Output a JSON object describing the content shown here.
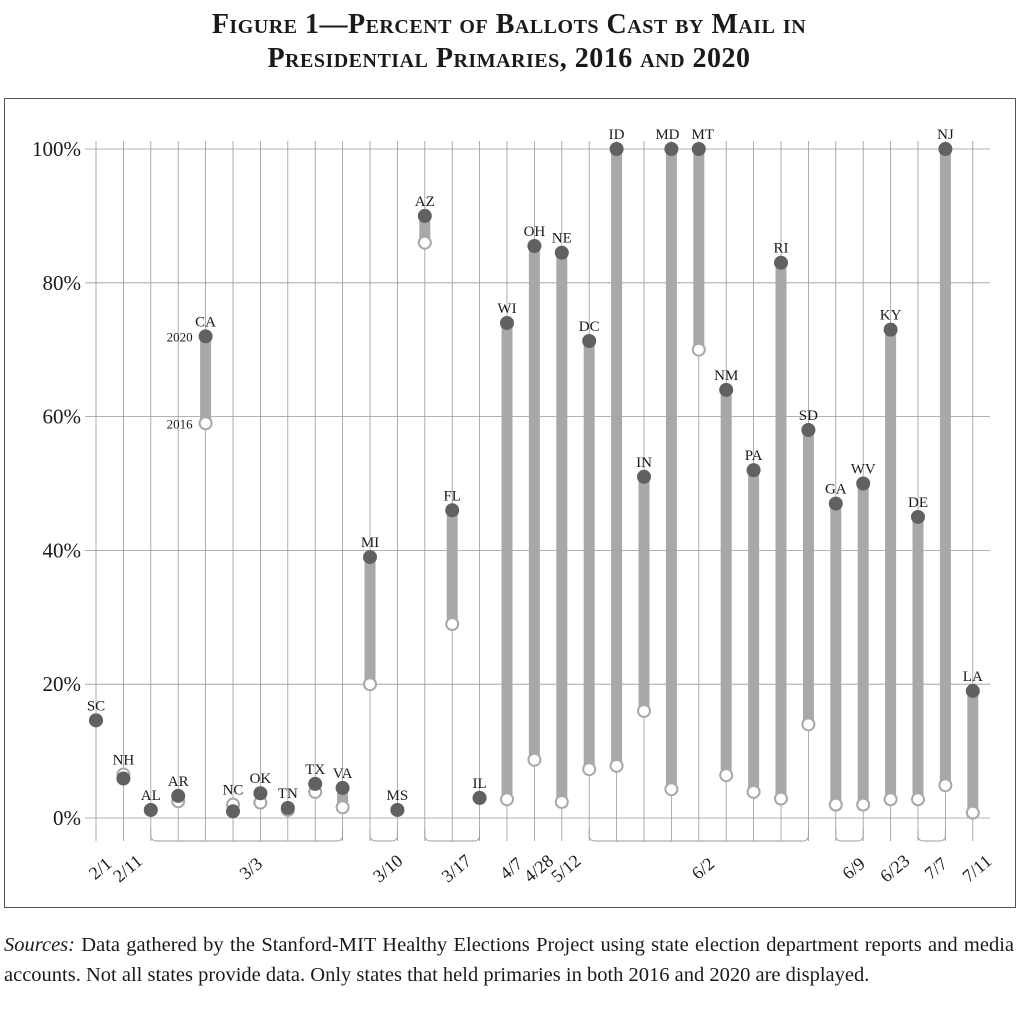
{
  "title": {
    "line1": "Figure 1—Percent of Ballots Cast by Mail in",
    "line2": "Presidential Primaries, 2016 and 2020"
  },
  "sources": {
    "label": "Sources:",
    "text": " Data gathered by the Stanford-MIT Healthy Elections Project using state election department reports and media accounts. Not all states provide data. Only states that held primaries in both 2016 and 2020 are displayed."
  },
  "chart_data": {
    "type": "dumbbell",
    "ylim": [
      0,
      100
    ],
    "yticks": [
      0,
      20,
      40,
      60,
      80,
      100
    ],
    "ytick_labels": [
      "0%",
      "20%",
      "40%",
      "60%",
      "80%",
      "100%"
    ],
    "grid": true,
    "legend_labels": {
      "y2020": "2020",
      "y2016": "2016"
    },
    "colors": {
      "filled": "#616161",
      "bar": "#a8a8a8",
      "grid": "#9a9a9a",
      "open_fill": "#ffffff"
    },
    "states": [
      {
        "state": "SC",
        "v2016": 14.6,
        "v2020": 14.6
      },
      {
        "state": "NH",
        "v2016": 6.5,
        "v2020": 5.9
      },
      {
        "state": "AL",
        "v2016": 1.2,
        "v2020": 1.2
      },
      {
        "state": "AR",
        "v2016": 2.5,
        "v2020": 3.3
      },
      {
        "state": "CA",
        "v2016": 59,
        "v2020": 72
      },
      {
        "state": "NC",
        "v2016": 2.0,
        "v2020": 1.0
      },
      {
        "state": "OK",
        "v2016": 2.3,
        "v2020": 3.7
      },
      {
        "state": "TN",
        "v2016": 1.2,
        "v2020": 1.5
      },
      {
        "state": "TX",
        "v2016": 3.9,
        "v2020": 5.1
      },
      {
        "state": "VA",
        "v2016": 1.6,
        "v2020": 4.5
      },
      {
        "state": "MI",
        "v2016": 20,
        "v2020": 39
      },
      {
        "state": "MS",
        "v2016": 1.2,
        "v2020": 1.2
      },
      {
        "state": "AZ",
        "v2016": 86,
        "v2020": 90
      },
      {
        "state": "FL",
        "v2016": 29,
        "v2020": 46
      },
      {
        "state": "IL",
        "v2016": 3.0,
        "v2020": 3.0
      },
      {
        "state": "WI",
        "v2016": 2.8,
        "v2020": 74
      },
      {
        "state": "OH",
        "v2016": 8.7,
        "v2020": 85.5
      },
      {
        "state": "NE",
        "v2016": 2.4,
        "v2020": 84.5
      },
      {
        "state": "DC",
        "v2016": 7.3,
        "v2020": 71.3
      },
      {
        "state": "ID",
        "v2016": 7.8,
        "v2020": 100
      },
      {
        "state": "IN",
        "v2016": 16,
        "v2020": 51
      },
      {
        "state": "MD",
        "v2016": 4.3,
        "v2020": 100
      },
      {
        "state": "MT",
        "v2016": 70,
        "v2020": 100
      },
      {
        "state": "NM",
        "v2016": 6.4,
        "v2020": 64
      },
      {
        "state": "PA",
        "v2016": 3.9,
        "v2020": 52
      },
      {
        "state": "RI",
        "v2016": 2.9,
        "v2020": 83
      },
      {
        "state": "SD",
        "v2016": 14,
        "v2020": 58
      },
      {
        "state": "GA",
        "v2016": 2.0,
        "v2020": 47
      },
      {
        "state": "WV",
        "v2016": 2.0,
        "v2020": 50
      },
      {
        "state": "KY",
        "v2016": 2.8,
        "v2020": 73
      },
      {
        "state": "DE",
        "v2016": 2.8,
        "v2020": 45
      },
      {
        "state": "NJ",
        "v2016": 4.9,
        "v2020": 100
      },
      {
        "state": "LA",
        "v2016": 0.8,
        "v2020": 19
      }
    ],
    "date_groups": [
      {
        "date": "2/1",
        "from": 0,
        "to": 0
      },
      {
        "date": "2/11",
        "from": 1,
        "to": 1
      },
      {
        "date": "3/3",
        "from": 2,
        "to": 9
      },
      {
        "date": "3/10",
        "from": 10,
        "to": 11
      },
      {
        "date": "3/17",
        "from": 12,
        "to": 14
      },
      {
        "date": "4/7",
        "from": 15,
        "to": 15
      },
      {
        "date": "4/28",
        "from": 16,
        "to": 16
      },
      {
        "date": "5/12",
        "from": 17,
        "to": 17
      },
      {
        "date": "6/2",
        "from": 18,
        "to": 26
      },
      {
        "date": "6/9",
        "from": 27,
        "to": 28
      },
      {
        "date": "6/23",
        "from": 29,
        "to": 29
      },
      {
        "date": "7/7",
        "from": 30,
        "to": 31
      },
      {
        "date": "7/11",
        "from": 32,
        "to": 32
      }
    ]
  }
}
